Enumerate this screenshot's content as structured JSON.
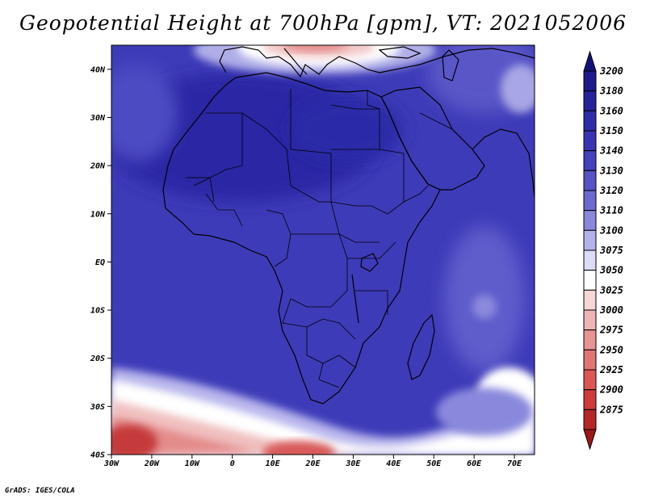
{
  "title": "Geopotential Height at 700hPa [gpm], VT: 2021052006",
  "credit": "GrADS: IGES/COLA",
  "map": {
    "lon_range": [
      -30,
      75
    ],
    "lat_range": [
      -40,
      45
    ],
    "lat_ticks": [
      {
        "value": 40,
        "label": "40N"
      },
      {
        "value": 30,
        "label": "30N"
      },
      {
        "value": 20,
        "label": "20N"
      },
      {
        "value": 10,
        "label": "10N"
      },
      {
        "value": 0,
        "label": "EQ"
      },
      {
        "value": -10,
        "label": "10S"
      },
      {
        "value": -20,
        "label": "20S"
      },
      {
        "value": -30,
        "label": "30S"
      },
      {
        "value": -40,
        "label": "40S"
      }
    ],
    "lon_ticks": [
      {
        "value": -30,
        "label": "30W"
      },
      {
        "value": -20,
        "label": "20W"
      },
      {
        "value": -10,
        "label": "10W"
      },
      {
        "value": 0,
        "label": "0"
      },
      {
        "value": 10,
        "label": "10E"
      },
      {
        "value": 20,
        "label": "20E"
      },
      {
        "value": 30,
        "label": "30E"
      },
      {
        "value": 40,
        "label": "40E"
      },
      {
        "value": 50,
        "label": "50E"
      },
      {
        "value": 60,
        "label": "60E"
      },
      {
        "value": 70,
        "label": "70E"
      }
    ]
  },
  "colorbar": {
    "levels": [
      {
        "label": "3200",
        "color": "#1c1a8c"
      },
      {
        "label": "3180",
        "color": "#25239c"
      },
      {
        "label": "3160",
        "color": "#2e2ca9"
      },
      {
        "label": "3150",
        "color": "#3835b4"
      },
      {
        "label": "3140",
        "color": "#4441bc"
      },
      {
        "label": "3130",
        "color": "#5653c6"
      },
      {
        "label": "3120",
        "color": "#6c6ad0"
      },
      {
        "label": "3110",
        "color": "#8a88dc"
      },
      {
        "label": "3100",
        "color": "#b4b2ea"
      },
      {
        "label": "3075",
        "color": "#dcdcf6"
      },
      {
        "label": "3050",
        "color": "#ffffff"
      },
      {
        "label": "3025",
        "color": "#f7d6d6"
      },
      {
        "label": "3000",
        "color": "#efb4b4"
      },
      {
        "label": "2975",
        "color": "#e99494"
      },
      {
        "label": "2950",
        "color": "#e27474"
      },
      {
        "label": "2925",
        "color": "#dc5656"
      },
      {
        "label": "2900",
        "color": "#cf3a3a"
      },
      {
        "label": "2875",
        "color": "#b52626"
      }
    ],
    "top_arrow_color": "#14127a",
    "bottom_arrow_color": "#9c1818"
  }
}
